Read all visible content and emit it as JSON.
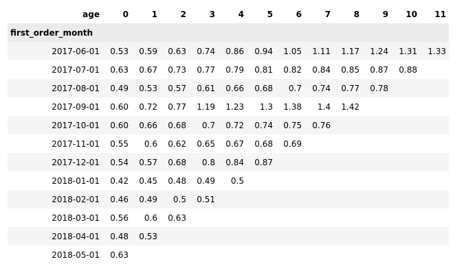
{
  "table": {
    "columns_name": "age",
    "index_name": "first_order_month",
    "columns": [
      "0",
      "1",
      "2",
      "3",
      "4",
      "5",
      "6",
      "7",
      "8",
      "9",
      "10",
      "11"
    ],
    "rows": [
      {
        "index": "2017-06-01",
        "values": [
          "0.53",
          "0.59",
          "0.63",
          "0.74",
          "0.86",
          "0.94",
          "1.05",
          "1.11",
          "1.17",
          "1.24",
          "1.31",
          "1.33"
        ]
      },
      {
        "index": "2017-07-01",
        "values": [
          "0.63",
          "0.67",
          "0.73",
          "0.77",
          "0.79",
          "0.81",
          "0.82",
          "0.84",
          "0.85",
          "0.87",
          "0.88",
          ""
        ]
      },
      {
        "index": "2017-08-01",
        "values": [
          "0.49",
          "0.53",
          "0.57",
          "0.61",
          "0.66",
          "0.68",
          "0.7",
          "0.74",
          "0.77",
          "0.78",
          "",
          ""
        ]
      },
      {
        "index": "2017-09-01",
        "values": [
          "0.60",
          "0.72",
          "0.77",
          "1.19",
          "1.23",
          "1.3",
          "1.38",
          "1.4",
          "1.42",
          "",
          "",
          ""
        ]
      },
      {
        "index": "2017-10-01",
        "values": [
          "0.60",
          "0.66",
          "0.68",
          "0.7",
          "0.72",
          "0.74",
          "0.75",
          "0.76",
          "",
          "",
          "",
          ""
        ]
      },
      {
        "index": "2017-11-01",
        "values": [
          "0.55",
          "0.6",
          "0.62",
          "0.65",
          "0.67",
          "0.68",
          "0.69",
          "",
          "",
          "",
          "",
          ""
        ]
      },
      {
        "index": "2017-12-01",
        "values": [
          "0.54",
          "0.57",
          "0.68",
          "0.8",
          "0.84",
          "0.87",
          "",
          "",
          "",
          "",
          "",
          ""
        ]
      },
      {
        "index": "2018-01-01",
        "values": [
          "0.42",
          "0.45",
          "0.48",
          "0.49",
          "0.5",
          "",
          "",
          "",
          "",
          "",
          "",
          ""
        ]
      },
      {
        "index": "2018-02-01",
        "values": [
          "0.46",
          "0.49",
          "0.5",
          "0.51",
          "",
          "",
          "",
          "",
          "",
          "",
          "",
          ""
        ]
      },
      {
        "index": "2018-03-01",
        "values": [
          "0.56",
          "0.6",
          "0.63",
          "",
          "",
          "",
          "",
          "",
          "",
          "",
          "",
          ""
        ]
      },
      {
        "index": "2018-04-01",
        "values": [
          "0.48",
          "0.53",
          "",
          "",
          "",
          "",
          "",
          "",
          "",
          "",
          "",
          ""
        ]
      },
      {
        "index": "2018-05-01",
        "values": [
          "0.63",
          "",
          "",
          "",
          "",
          "",
          "",
          "",
          "",
          "",
          "",
          ""
        ]
      }
    ]
  }
}
